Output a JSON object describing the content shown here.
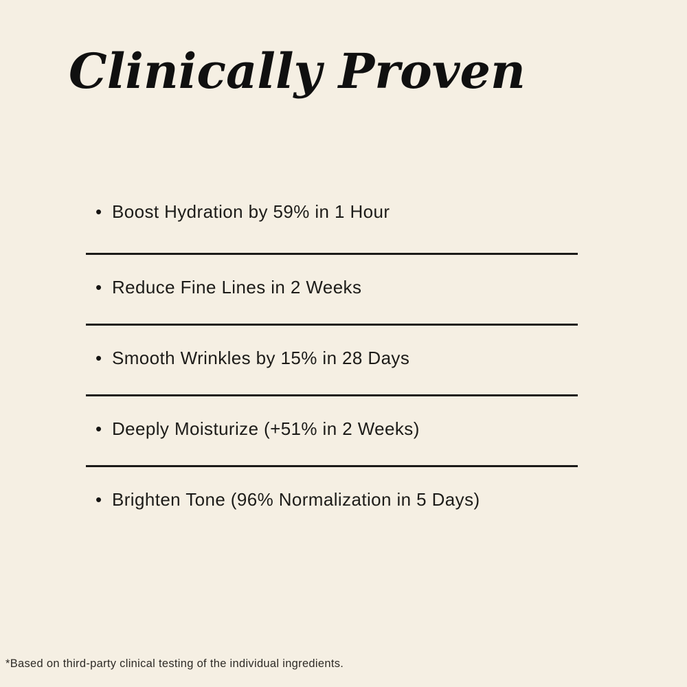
{
  "page": {
    "title": "Clinically Proven",
    "footnote": "*Based on third-party clinical testing of the individual ingredients."
  },
  "list": {
    "bullet": "•",
    "items": [
      {
        "text": "Boost Hydration by 59% in 1 Hour"
      },
      {
        "text": "Reduce Fine Lines in 2 Weeks"
      },
      {
        "text": "Smooth Wrinkles by 15% in 28 Days"
      },
      {
        "text": "Deeply Moisturize (+51% in 2 Weeks)"
      },
      {
        "text": "Brighten Tone (96% Normalization in 5 Days)"
      }
    ]
  },
  "colors": {
    "background": "#F5EFE3",
    "title_text": "#101010",
    "body_text": "#1D1C19",
    "divider": "#1B1A18"
  }
}
